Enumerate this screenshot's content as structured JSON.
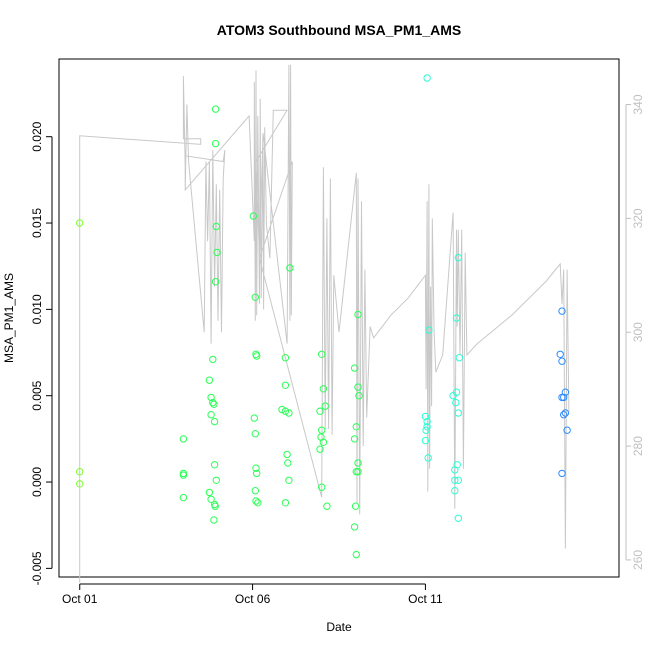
{
  "chart_data": {
    "type": "scatter",
    "title": "ATOM3 Southbound MSA_PM1_AMS",
    "xlabel": "Date",
    "ylabel": "MSA_PM1_AMS",
    "x_unit": "day of October 2014",
    "xlim": [
      0.4,
      16.6
    ],
    "ylim": [
      -0.0055,
      0.0245
    ],
    "x_ticks": [
      1,
      6,
      11
    ],
    "x_tick_labels": [
      "Oct 01",
      "Oct 06",
      "Oct 11"
    ],
    "y_ticks": [
      -0.005,
      0.0,
      0.005,
      0.01,
      0.015,
      0.02
    ],
    "y_tick_labels": [
      "-0.005",
      "0.000",
      "0.005",
      "0.010",
      "0.015",
      "0.020"
    ],
    "y2_ticks": [
      260,
      280,
      300,
      320,
      340
    ],
    "y2_tick_labels": [
      "260",
      "280",
      "300",
      "320",
      "340"
    ],
    "y2lim": [
      257,
      348
    ],
    "grid": false,
    "legend": "none",
    "line_color": "#c8c8c8",
    "point_colors": {
      "early": "#7cff2a",
      "mid": "#2aff55",
      "late": "#2affd4",
      "end": "#2a8cff"
    },
    "points": [
      {
        "x": 1.0,
        "y": 0.015
      },
      {
        "x": 1.0,
        "y": 0.0006
      },
      {
        "x": 1.0,
        "y": -0.0001
      },
      {
        "x": 4.0,
        "y": 0.0025
      },
      {
        "x": 4.0,
        "y": 0.0005
      },
      {
        "x": 4.0,
        "y": 0.0004
      },
      {
        "x": 4.0,
        "y": -0.0009
      },
      {
        "x": 4.75,
        "y": 0.0059
      },
      {
        "x": 4.8,
        "y": 0.0049
      },
      {
        "x": 4.8,
        "y": 0.0039
      },
      {
        "x": 4.75,
        "y": -0.0006
      },
      {
        "x": 4.8,
        "y": -0.001
      },
      {
        "x": 4.85,
        "y": 0.0071
      },
      {
        "x": 4.85,
        "y": 0.0046
      },
      {
        "x": 4.88,
        "y": 0.0045
      },
      {
        "x": 4.9,
        "y": 0.0035
      },
      {
        "x": 4.9,
        "y": 0.001
      },
      {
        "x": 4.9,
        "y": -0.0013
      },
      {
        "x": 4.92,
        "y": -0.0014
      },
      {
        "x": 4.95,
        "y": 0.0001
      },
      {
        "x": 4.88,
        "y": -0.0022
      },
      {
        "x": 4.93,
        "y": 0.0216
      },
      {
        "x": 4.93,
        "y": 0.0196
      },
      {
        "x": 4.95,
        "y": 0.0148
      },
      {
        "x": 4.97,
        "y": 0.0133
      },
      {
        "x": 4.93,
        "y": 0.0116
      },
      {
        "x": 6.02,
        "y": 0.0154
      },
      {
        "x": 6.08,
        "y": 0.0107
      },
      {
        "x": 6.1,
        "y": 0.0074
      },
      {
        "x": 6.12,
        "y": 0.0073
      },
      {
        "x": 6.05,
        "y": 0.0037
      },
      {
        "x": 6.08,
        "y": 0.0028
      },
      {
        "x": 6.1,
        "y": 0.0008
      },
      {
        "x": 6.12,
        "y": 0.0005
      },
      {
        "x": 6.08,
        "y": -0.0005
      },
      {
        "x": 6.1,
        "y": -0.0011
      },
      {
        "x": 6.15,
        "y": -0.0012
      },
      {
        "x": 6.85,
        "y": 0.0042
      },
      {
        "x": 6.95,
        "y": 0.0041
      },
      {
        "x": 7.05,
        "y": 0.004
      },
      {
        "x": 6.95,
        "y": 0.0072
      },
      {
        "x": 6.95,
        "y": 0.0056
      },
      {
        "x": 7.0,
        "y": 0.0016
      },
      {
        "x": 7.02,
        "y": 0.0011
      },
      {
        "x": 7.05,
        "y": 0.0001
      },
      {
        "x": 6.95,
        "y": -0.0012
      },
      {
        "x": 7.08,
        "y": 0.0124
      },
      {
        "x": 8.0,
        "y": 0.0074
      },
      {
        "x": 8.05,
        "y": 0.0054
      },
      {
        "x": 8.1,
        "y": 0.0044
      },
      {
        "x": 7.95,
        "y": 0.0041
      },
      {
        "x": 8.0,
        "y": 0.003
      },
      {
        "x": 7.98,
        "y": 0.0026
      },
      {
        "x": 8.05,
        "y": 0.0023
      },
      {
        "x": 7.95,
        "y": 0.0019
      },
      {
        "x": 8.0,
        "y": -0.0003
      },
      {
        "x": 8.15,
        "y": -0.0014
      },
      {
        "x": 8.95,
        "y": 0.0066
      },
      {
        "x": 9.05,
        "y": 0.0097
      },
      {
        "x": 9.05,
        "y": 0.0055
      },
      {
        "x": 9.08,
        "y": 0.005
      },
      {
        "x": 9.0,
        "y": 0.0032
      },
      {
        "x": 8.95,
        "y": 0.0025
      },
      {
        "x": 9.05,
        "y": 0.0011
      },
      {
        "x": 9.0,
        "y": 0.0006
      },
      {
        "x": 9.05,
        "y": 0.0006
      },
      {
        "x": 8.98,
        "y": -0.0014
      },
      {
        "x": 8.95,
        "y": -0.0026
      },
      {
        "x": 9.0,
        "y": -0.0042
      },
      {
        "x": 11.05,
        "y": 0.0234
      },
      {
        "x": 11.1,
        "y": 0.0088
      },
      {
        "x": 11.0,
        "y": 0.0038
      },
      {
        "x": 11.05,
        "y": 0.0035
      },
      {
        "x": 11.05,
        "y": 0.0032
      },
      {
        "x": 11.02,
        "y": 0.003
      },
      {
        "x": 11.0,
        "y": 0.0024
      },
      {
        "x": 11.08,
        "y": 0.0014
      },
      {
        "x": 11.8,
        "y": 0.005
      },
      {
        "x": 11.9,
        "y": 0.0052
      },
      {
        "x": 11.88,
        "y": 0.0046
      },
      {
        "x": 11.9,
        "y": 0.0095
      },
      {
        "x": 11.95,
        "y": 0.013
      },
      {
        "x": 11.98,
        "y": 0.0072
      },
      {
        "x": 11.95,
        "y": 0.004
      },
      {
        "x": 11.92,
        "y": 0.001
      },
      {
        "x": 11.85,
        "y": 0.0007
      },
      {
        "x": 11.85,
        "y": 0.0001
      },
      {
        "x": 11.95,
        "y": 0.0001
      },
      {
        "x": 11.85,
        "y": -0.0005
      },
      {
        "x": 11.95,
        "y": -0.0021
      },
      {
        "x": 14.95,
        "y": 0.0099
      },
      {
        "x": 14.9,
        "y": 0.0074
      },
      {
        "x": 14.95,
        "y": 0.007
      },
      {
        "x": 15.05,
        "y": 0.0052
      },
      {
        "x": 14.95,
        "y": 0.0049
      },
      {
        "x": 15.0,
        "y": 0.0049
      },
      {
        "x": 15.05,
        "y": 0.004
      },
      {
        "x": 15.0,
        "y": 0.0039
      },
      {
        "x": 15.1,
        "y": 0.003
      },
      {
        "x": 14.95,
        "y": 0.0005
      }
    ],
    "line_y2": [
      [
        1.0,
        256
      ],
      [
        1.0,
        334.5
      ],
      [
        4.5,
        333
      ],
      [
        4.5,
        334
      ],
      [
        4.0,
        334
      ],
      [
        4.0,
        345
      ],
      [
        4.05,
        329
      ],
      [
        4.05,
        325
      ],
      [
        4.1,
        340
      ],
      [
        4.15,
        330
      ],
      [
        4.6,
        300
      ],
      [
        4.65,
        330
      ],
      [
        4.7,
        316
      ],
      [
        4.75,
        330
      ],
      [
        4.8,
        298
      ],
      [
        4.85,
        332
      ],
      [
        4.9,
        308
      ],
      [
        4.95,
        326
      ],
      [
        5.0,
        302
      ],
      [
        5.05,
        325
      ],
      [
        5.1,
        300
      ],
      [
        5.15,
        327
      ],
      [
        5.2,
        332
      ],
      [
        5.15,
        330
      ],
      [
        4.05,
        331
      ],
      [
        4.05,
        325
      ],
      [
        5.9,
        338
      ],
      [
        6.05,
        316
      ],
      [
        6.05,
        344
      ],
      [
        6.08,
        302
      ],
      [
        6.1,
        346
      ],
      [
        6.12,
        303
      ],
      [
        6.15,
        338
      ],
      [
        6.2,
        305
      ],
      [
        6.22,
        341
      ],
      [
        6.25,
        306
      ],
      [
        6.3,
        333
      ],
      [
        6.32,
        304
      ],
      [
        6.35,
        336
      ],
      [
        6.4,
        319
      ],
      [
        6.5,
        313
      ],
      [
        6.6,
        339
      ],
      [
        7.0,
        339
      ],
      [
        6.1,
        330
      ],
      [
        6.2,
        313
      ],
      [
        6.3,
        335
      ],
      [
        7.0,
        298
      ],
      [
        7.05,
        347
      ],
      [
        7.08,
        302
      ],
      [
        7.1,
        347
      ],
      [
        7.12,
        303
      ],
      [
        7.15,
        330
      ],
      [
        6.2,
        313
      ],
      [
        8.0,
        271
      ],
      [
        8.05,
        329
      ],
      [
        8.1,
        283
      ],
      [
        8.15,
        320
      ],
      [
        8.2,
        283
      ],
      [
        8.25,
        327
      ],
      [
        8.3,
        282
      ],
      [
        8.35,
        310
      ],
      [
        8.5,
        300
      ],
      [
        9.0,
        328
      ],
      [
        9.02,
        270
      ],
      [
        9.05,
        327
      ],
      [
        9.1,
        268
      ],
      [
        9.15,
        323
      ],
      [
        9.2,
        280
      ],
      [
        9.25,
        311
      ],
      [
        9.3,
        285
      ],
      [
        9.4,
        301
      ],
      [
        9.5,
        299
      ],
      [
        10.0,
        303
      ],
      [
        10.5,
        306
      ],
      [
        11.0,
        310
      ],
      [
        11.02,
        290
      ],
      [
        11.05,
        323
      ],
      [
        11.07,
        272
      ],
      [
        11.1,
        326
      ],
      [
        11.12,
        276
      ],
      [
        11.15,
        308
      ],
      [
        11.18,
        287
      ],
      [
        11.2,
        320
      ],
      [
        11.25,
        300
      ],
      [
        11.3,
        293
      ],
      [
        11.5,
        296
      ],
      [
        11.8,
        321
      ],
      [
        11.85,
        269
      ],
      [
        11.9,
        318
      ],
      [
        11.92,
        301
      ],
      [
        11.95,
        318
      ],
      [
        12.0,
        296
      ],
      [
        12.05,
        318
      ],
      [
        12.1,
        276
      ],
      [
        12.15,
        314
      ],
      [
        12.2,
        296
      ],
      [
        12.5,
        298
      ],
      [
        13.5,
        303
      ],
      [
        14.5,
        309
      ],
      [
        14.9,
        312
      ],
      [
        14.95,
        305
      ],
      [
        15.0,
        311
      ],
      [
        15.05,
        262
      ],
      [
        15.1,
        311
      ],
      [
        15.15,
        286
      ]
    ]
  }
}
